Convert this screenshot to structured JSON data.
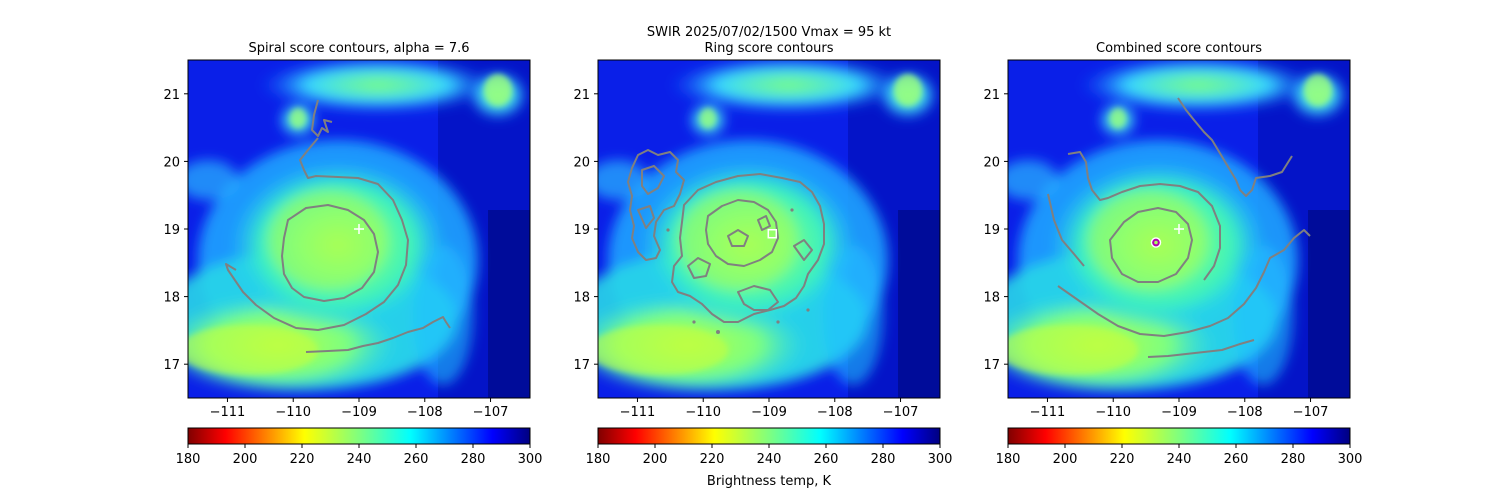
{
  "figure": {
    "suptitle_line1": "SWIR  2025/07/02/1500    Vmax = 95 kt",
    "colorbar_label": "Brightness temp, K"
  },
  "colors": {
    "contour": "#808080",
    "colormap": "jet_r",
    "marker_white": "#ffffff",
    "marker_magenta": "#b400b4"
  },
  "chart_data": [
    {
      "type": "heatmap",
      "title": "Spiral score contours, alpha =  7.6",
      "xlim": [
        -111.6,
        -106.4
      ],
      "ylim": [
        16.5,
        21.5
      ],
      "xticks": [
        -111,
        -110,
        -109,
        -108,
        -107
      ],
      "xtick_labels": [
        "−111",
        "−110",
        "−109",
        "−108",
        "−107"
      ],
      "yticks": [
        17,
        18,
        19,
        20,
        21
      ],
      "ytick_labels": [
        "17",
        "18",
        "19",
        "20",
        "21"
      ],
      "colorbar": {
        "min": 180,
        "max": 300,
        "ticks": [
          180,
          200,
          220,
          240,
          260,
          280,
          300
        ],
        "tick_labels": [
          "180",
          "200",
          "220",
          "240",
          "260",
          "280",
          "300"
        ]
      },
      "marker": {
        "symbol": "plus",
        "x": -109.0,
        "y": 19.0,
        "color": "white"
      }
    },
    {
      "type": "heatmap",
      "title": "Ring score contours",
      "xlim": [
        -111.6,
        -106.4
      ],
      "ylim": [
        16.5,
        21.5
      ],
      "xticks": [
        -111,
        -110,
        -109,
        -108,
        -107
      ],
      "xtick_labels": [
        "−111",
        "−110",
        "−109",
        "−108",
        "−107"
      ],
      "yticks": [
        17,
        18,
        19,
        20,
        21
      ],
      "ytick_labels": [
        "17",
        "18",
        "19",
        "20",
        "21"
      ],
      "colorbar": {
        "min": 180,
        "max": 300,
        "ticks": [
          180,
          200,
          220,
          240,
          260,
          280,
          300
        ],
        "tick_labels": [
          "180",
          "200",
          "220",
          "240",
          "260",
          "280",
          "300"
        ]
      },
      "marker": {
        "symbol": "square",
        "x": -108.95,
        "y": 18.93,
        "color": "white"
      }
    },
    {
      "type": "heatmap",
      "title": "Combined score contours",
      "xlim": [
        -111.6,
        -106.4
      ],
      "ylim": [
        16.5,
        21.5
      ],
      "xticks": [
        -111,
        -110,
        -109,
        -108,
        -107
      ],
      "xtick_labels": [
        "−111",
        "−110",
        "−109",
        "−108",
        "−107"
      ],
      "yticks": [
        17,
        18,
        19,
        20,
        21
      ],
      "ytick_labels": [
        "17",
        "18",
        "19",
        "20",
        "21"
      ],
      "colorbar": {
        "min": 180,
        "max": 300,
        "ticks": [
          180,
          200,
          220,
          240,
          260,
          280,
          300
        ],
        "tick_labels": [
          "180",
          "200",
          "220",
          "240",
          "260",
          "280",
          "300"
        ]
      },
      "marker": {
        "symbol": "plus",
        "x": -109.0,
        "y": 19.0,
        "color": "white"
      },
      "marker2": {
        "symbol": "circle",
        "x": -109.35,
        "y": 18.8,
        "color": "magenta"
      }
    }
  ]
}
